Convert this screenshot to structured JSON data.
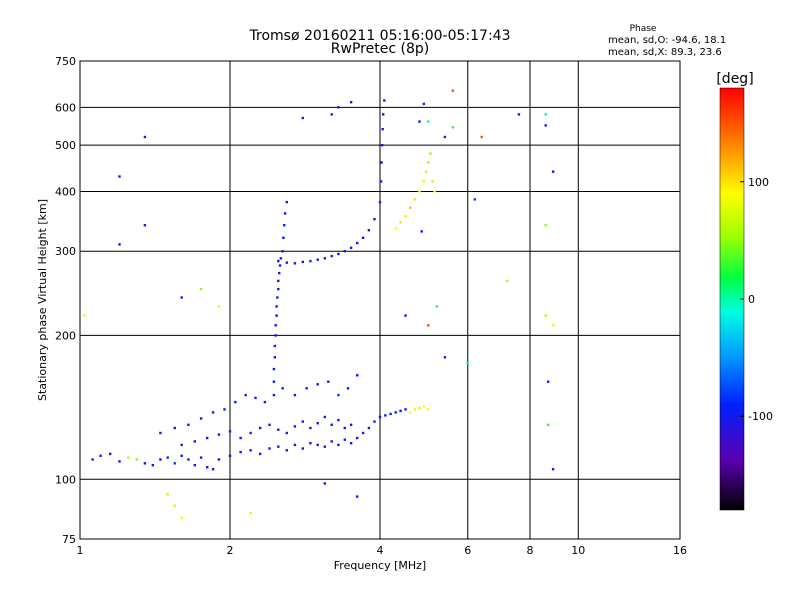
{
  "chart_data": {
    "type": "scatter",
    "title": "Tromsø 20160211 05:16:00-05:17:43",
    "subtitle": "RwPretec (8p)",
    "xlabel": "Frequency [MHz]",
    "ylabel": "Stationary phase Virtual Height [km]",
    "x_scale": "log2",
    "y_scale": "log",
    "xlim": [
      1,
      16
    ],
    "ylim": [
      75,
      750
    ],
    "x_ticks": [
      1,
      2,
      4,
      6,
      8,
      10,
      16
    ],
    "x_tick_labels": [
      "1",
      "2",
      "4",
      "6",
      "8",
      "10",
      "16"
    ],
    "y_ticks": [
      75,
      100,
      200,
      300,
      400,
      500,
      600,
      750
    ],
    "y_tick_labels": [
      "75",
      "100",
      "200",
      "300",
      "400",
      "500",
      "600",
      "750"
    ],
    "grid": true,
    "phase_stats": {
      "title": "Phase",
      "o_line": "mean, sd,O: -94.6, 18.1",
      "x_line": "mean, sd,X: 89.3, 23.6"
    },
    "colorbar": {
      "label": "[deg]",
      "range": [
        -180,
        180
      ],
      "ticks": [
        100,
        0,
        -100
      ],
      "tick_labels": [
        "100",
        "0",
        "-100"
      ]
    },
    "series": [
      {
        "points": [
          [
            1.06,
            110,
            -100
          ],
          [
            1.1,
            112,
            -105
          ],
          [
            1.15,
            113,
            -95
          ],
          [
            1.2,
            109,
            -110
          ],
          [
            1.25,
            111,
            60
          ],
          [
            1.3,
            110,
            50
          ],
          [
            1.35,
            108,
            -100
          ],
          [
            1.4,
            107,
            -90
          ],
          [
            1.45,
            110,
            -120
          ],
          [
            1.5,
            111,
            -100
          ],
          [
            1.55,
            108,
            -80
          ],
          [
            1.6,
            112,
            -95
          ],
          [
            1.65,
            110,
            -100
          ],
          [
            1.7,
            107,
            -115
          ],
          [
            1.75,
            111,
            -100
          ],
          [
            1.8,
            106,
            -90
          ],
          [
            1.85,
            105,
            -100
          ],
          [
            1.9,
            110,
            -110
          ]
        ]
      },
      {
        "points": [
          [
            1.45,
            125,
            -100
          ],
          [
            1.55,
            128,
            -110
          ],
          [
            1.65,
            130,
            -95
          ],
          [
            1.75,
            134,
            -100
          ],
          [
            1.85,
            138,
            -105
          ],
          [
            1.95,
            140,
            -100
          ],
          [
            2.05,
            145,
            -90
          ],
          [
            2.15,
            150,
            -100
          ],
          [
            2.25,
            148,
            -110
          ],
          [
            2.35,
            145,
            -100
          ],
          [
            2.45,
            150,
            -95
          ],
          [
            2.55,
            155,
            -100
          ],
          [
            2.7,
            150,
            -100
          ],
          [
            2.85,
            155,
            -90
          ],
          [
            3.0,
            158,
            -100
          ],
          [
            3.15,
            160,
            -100
          ],
          [
            3.3,
            150,
            -80
          ],
          [
            3.45,
            155,
            -100
          ],
          [
            3.6,
            165,
            -100
          ]
        ]
      },
      {
        "points": [
          [
            1.6,
            118,
            -100
          ],
          [
            1.7,
            120,
            -120
          ],
          [
            1.8,
            122,
            -100
          ],
          [
            1.9,
            124,
            -90
          ],
          [
            2.0,
            126,
            -100
          ],
          [
            2.1,
            122,
            -105
          ],
          [
            2.2,
            125,
            -100
          ],
          [
            2.3,
            128,
            -100
          ],
          [
            2.4,
            130,
            -110
          ],
          [
            2.5,
            127,
            -100
          ],
          [
            2.6,
            125,
            -95
          ],
          [
            2.7,
            129,
            -100
          ],
          [
            2.8,
            132,
            -100
          ],
          [
            2.9,
            128,
            -130
          ],
          [
            3.0,
            131,
            -100
          ],
          [
            3.1,
            135,
            -100
          ],
          [
            3.2,
            130,
            -90
          ],
          [
            3.3,
            133,
            -100
          ],
          [
            3.4,
            128,
            -100
          ],
          [
            3.5,
            130,
            -120
          ]
        ]
      },
      {
        "points": [
          [
            2.0,
            112,
            -100
          ],
          [
            2.1,
            114,
            -100
          ],
          [
            2.2,
            115,
            -110
          ],
          [
            2.3,
            113,
            -100
          ],
          [
            2.4,
            116,
            -100
          ],
          [
            2.5,
            117,
            -95
          ],
          [
            2.6,
            115,
            -100
          ],
          [
            2.7,
            118,
            -100
          ],
          [
            2.8,
            116,
            -140
          ],
          [
            2.9,
            119,
            -100
          ],
          [
            3.0,
            118,
            -100
          ],
          [
            3.1,
            117,
            -100
          ],
          [
            3.2,
            120,
            -110
          ],
          [
            3.3,
            118,
            -100
          ],
          [
            3.4,
            121,
            -100
          ],
          [
            3.5,
            119,
            -100
          ],
          [
            3.6,
            122,
            -130
          ],
          [
            3.7,
            125,
            -100
          ],
          [
            3.8,
            128,
            -100
          ],
          [
            3.9,
            132,
            -100
          ],
          [
            4.0,
            135,
            -100
          ],
          [
            4.1,
            136,
            -100
          ],
          [
            4.2,
            137,
            -100
          ],
          [
            4.3,
            138,
            -100
          ],
          [
            4.4,
            139,
            -100
          ],
          [
            4.5,
            140,
            -100
          ]
        ]
      },
      {
        "points": [
          [
            4.6,
            138,
            90
          ],
          [
            4.7,
            140,
            95
          ],
          [
            4.8,
            141,
            100
          ],
          [
            4.9,
            142,
            85
          ],
          [
            5.0,
            140,
            90
          ]
        ]
      },
      {
        "points": [
          [
            2.45,
            160,
            -100
          ],
          [
            2.45,
            170,
            -100
          ],
          [
            2.46,
            180,
            -100
          ],
          [
            2.46,
            190,
            -100
          ],
          [
            2.47,
            200,
            -100
          ],
          [
            2.47,
            210,
            -100
          ],
          [
            2.48,
            220,
            -100
          ],
          [
            2.48,
            230,
            -100
          ],
          [
            2.49,
            240,
            -100
          ],
          [
            2.5,
            250,
            -100
          ],
          [
            2.5,
            260,
            -100
          ],
          [
            2.51,
            270,
            -100
          ],
          [
            2.52,
            280,
            -100
          ],
          [
            2.53,
            290,
            -100
          ],
          [
            2.55,
            300,
            -100
          ],
          [
            2.56,
            320,
            -100
          ],
          [
            2.57,
            340,
            -100
          ],
          [
            2.58,
            360,
            -100
          ],
          [
            2.6,
            380,
            -100
          ]
        ]
      },
      {
        "points": [
          [
            2.5,
            286,
            -100
          ],
          [
            2.6,
            284,
            -100
          ],
          [
            2.7,
            283,
            -100
          ],
          [
            2.8,
            285,
            -100
          ],
          [
            2.9,
            286,
            -100
          ],
          [
            3.0,
            288,
            -100
          ],
          [
            3.1,
            290,
            -100
          ],
          [
            3.2,
            293,
            -100
          ],
          [
            3.3,
            296,
            -100
          ],
          [
            3.4,
            300,
            -100
          ],
          [
            3.5,
            305,
            -100
          ],
          [
            3.6,
            312,
            -100
          ],
          [
            3.7,
            320,
            -100
          ],
          [
            3.8,
            332,
            -100
          ],
          [
            3.9,
            350,
            -100
          ],
          [
            4.0,
            380,
            -100
          ],
          [
            4.02,
            420,
            -100
          ],
          [
            4.03,
            460,
            -100
          ],
          [
            4.04,
            500,
            -100
          ],
          [
            4.05,
            540,
            -100
          ],
          [
            4.06,
            580,
            -100
          ],
          [
            4.08,
            620,
            -100
          ]
        ]
      },
      {
        "points": [
          [
            4.3,
            335,
            90
          ],
          [
            4.4,
            345,
            100
          ],
          [
            4.5,
            355,
            95
          ],
          [
            4.6,
            370,
            110
          ],
          [
            4.7,
            385,
            100
          ],
          [
            4.8,
            400,
            90
          ],
          [
            4.9,
            420,
            80
          ],
          [
            4.95,
            440,
            70
          ],
          [
            5.0,
            460,
            60
          ],
          [
            5.05,
            480,
            50
          ],
          [
            5.1,
            420,
            100
          ],
          [
            5.15,
            400,
            90
          ],
          [
            4.85,
            330,
            -100
          ]
        ]
      },
      {
        "points": [
          [
            1.35,
            520,
            -100
          ],
          [
            1.2,
            430,
            -100
          ],
          [
            1.2,
            310,
            -100
          ],
          [
            1.35,
            340,
            -100
          ],
          [
            2.8,
            570,
            -100
          ],
          [
            3.3,
            600,
            -100
          ],
          [
            3.5,
            615,
            -100
          ],
          [
            3.2,
            580,
            -100
          ],
          [
            4.8,
            560,
            -100
          ],
          [
            5.0,
            560,
            0
          ],
          [
            5.6,
            650,
            150
          ],
          [
            5.4,
            520,
            -90
          ],
          [
            6.4,
            520,
            150
          ],
          [
            6.2,
            385,
            -80
          ],
          [
            7.6,
            580,
            -110
          ],
          [
            8.6,
            580,
            0
          ],
          [
            8.6,
            550,
            -100
          ],
          [
            8.9,
            440,
            -100
          ],
          [
            8.6,
            340,
            50
          ],
          [
            7.2,
            260,
            60
          ],
          [
            8.6,
            220,
            60
          ],
          [
            8.9,
            210,
            80
          ],
          [
            8.7,
            160,
            -100
          ],
          [
            8.7,
            130,
            30
          ],
          [
            8.9,
            105,
            -100
          ],
          [
            1.75,
            250,
            50
          ],
          [
            1.6,
            240,
            -100
          ],
          [
            1.9,
            230,
            80
          ],
          [
            1.02,
            220,
            80
          ],
          [
            5.2,
            230,
            0
          ],
          [
            5.0,
            210,
            150
          ],
          [
            4.5,
            220,
            -100
          ],
          [
            5.4,
            180,
            -100
          ],
          [
            6.0,
            175,
            10
          ],
          [
            3.6,
            92,
            -100
          ],
          [
            1.5,
            93,
            70
          ],
          [
            1.55,
            88,
            70
          ],
          [
            1.6,
            83,
            80
          ],
          [
            2.2,
            85,
            70
          ],
          [
            3.1,
            98,
            -100
          ],
          [
            5.6,
            545,
            30
          ],
          [
            4.9,
            610,
            -110
          ]
        ]
      }
    ]
  }
}
